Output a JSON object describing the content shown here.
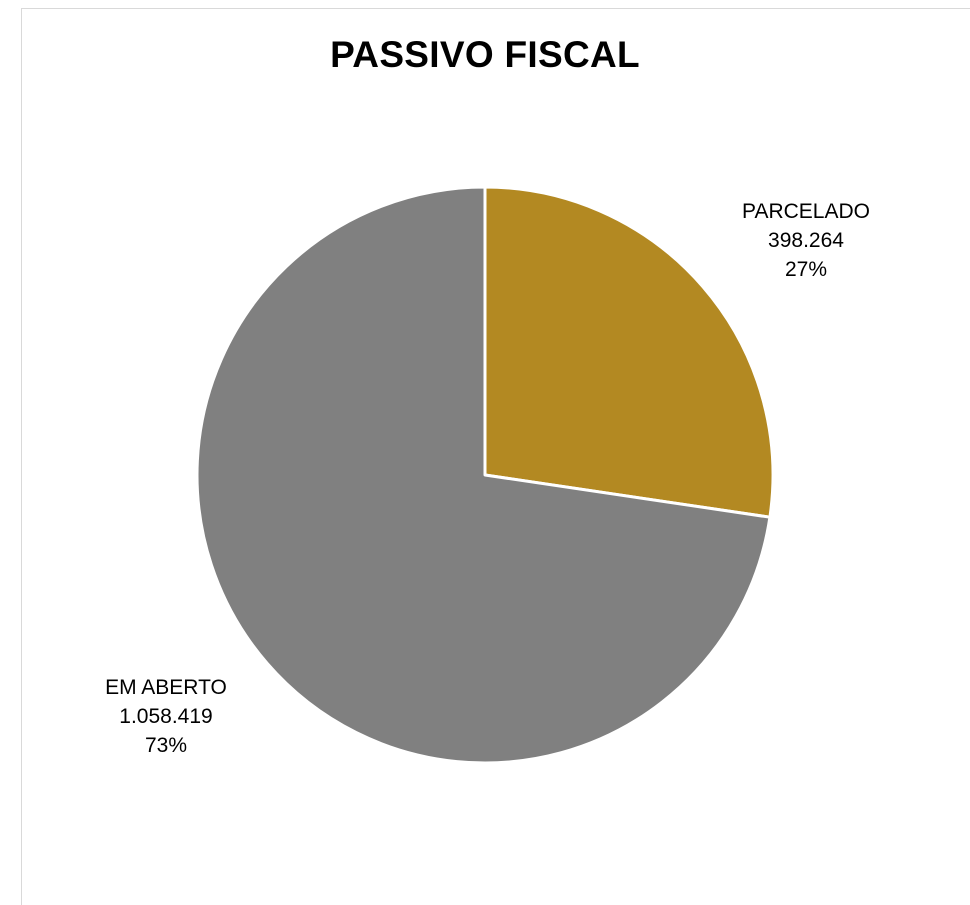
{
  "chart_data": {
    "type": "pie",
    "title": "PASSIVO FISCAL",
    "slices": [
      {
        "label": "PARCELADO",
        "value": 398264,
        "value_text": "398.264",
        "percent_text": "27%",
        "color": "#b38922"
      },
      {
        "label": "EM ABERTO",
        "value": 1058419,
        "value_text": "1.058.419",
        "percent_text": "73%",
        "color": "#808080"
      }
    ],
    "start_angle_deg": 0,
    "direction": "clockwise",
    "slice_border_color": "#ffffff",
    "legend": "none"
  }
}
